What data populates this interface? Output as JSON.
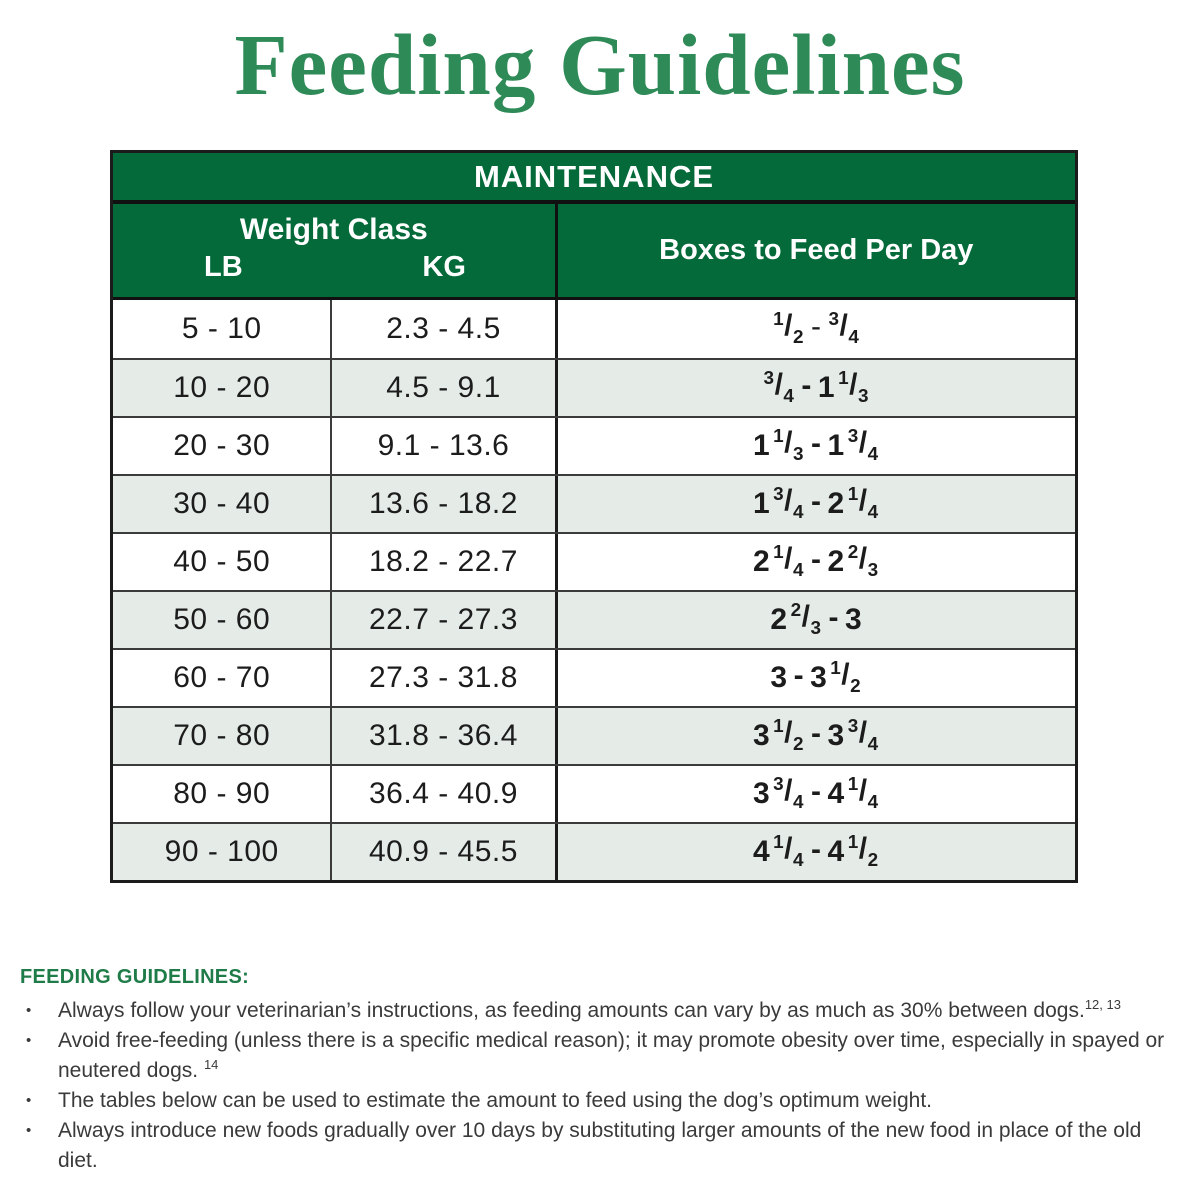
{
  "page": {
    "title": "Feeding Guidelines"
  },
  "colors": {
    "title_green": "#2e8a57",
    "header_green": "#056a39",
    "stripe_row": "#e5ece8",
    "heading_green": "#1f7c48",
    "border_dark": "#1b1b1b"
  },
  "table": {
    "band_label": "MAINTENANCE",
    "weight_group_label": "Weight Class",
    "col_lb": "LB",
    "col_kg": "KG",
    "col_feed": "Boxes to Feed Per Day",
    "rows": [
      {
        "lb": "5 - 10",
        "kg": "2.3 - 4.5",
        "feed": "1/2 - 3/4"
      },
      {
        "lb": "10 - 20",
        "kg": "4.5 - 9.1",
        "feed": "3/4 - 1 1/3"
      },
      {
        "lb": "20 - 30",
        "kg": "9.1 - 13.6",
        "feed": "1 1/3 - 1 3/4"
      },
      {
        "lb": "30 - 40",
        "kg": "13.6 - 18.2",
        "feed": "1 3/4 - 2 1/4"
      },
      {
        "lb": "40 - 50",
        "kg": "18.2 - 22.7",
        "feed": "2 1/4 - 2 2/3"
      },
      {
        "lb": "50 - 60",
        "kg": "22.7 - 27.3",
        "feed": "2 2/3 - 3"
      },
      {
        "lb": "60 - 70",
        "kg": "27.3 - 31.8",
        "feed": "3 - 3 1/2"
      },
      {
        "lb": "70 - 80",
        "kg": "31.8 - 36.4",
        "feed": "3 1/2 - 3 3/4"
      },
      {
        "lb": "80 - 90",
        "kg": "36.4 - 40.9",
        "feed": "3 3/4 - 4 1/4"
      },
      {
        "lb": "90 - 100",
        "kg": "40.9 - 45.5",
        "feed": "4 1/4 - 4 1/2"
      }
    ]
  },
  "footnotes": {
    "heading": "FEEDING GUIDELINES:",
    "bullets": [
      {
        "text": "Always follow your veterinarian’s instructions, as feeding amounts can vary by as much as 30% between dogs.",
        "sup": "12, 13"
      },
      {
        "text": "Avoid free-feeding (unless there is a specific medical reason); it may promote obesity over time, especially in spayed or neutered dogs. ",
        "sup": "14"
      },
      {
        "text": "The tables below can be used to estimate the amount to feed using the dog’s optimum weight.",
        "sup": ""
      },
      {
        "text": "Always introduce new foods gradually over 10 days by substituting larger amounts of the new food in place of the old diet.",
        "sup": ""
      }
    ]
  }
}
